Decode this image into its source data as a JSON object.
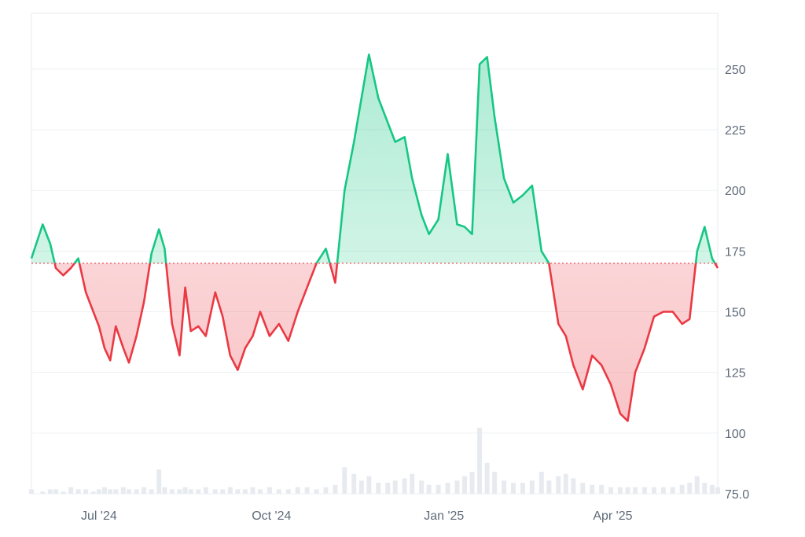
{
  "chart_data": {
    "type": "area",
    "baseline": 170,
    "y_ticks": [
      {
        "value": 250,
        "label": "250"
      },
      {
        "value": 225,
        "label": "225"
      },
      {
        "value": 200,
        "label": "200"
      },
      {
        "value": 175,
        "label": "175"
      },
      {
        "value": 150,
        "label": "150"
      },
      {
        "value": 125,
        "label": "125"
      },
      {
        "value": 100,
        "label": "100"
      },
      {
        "value": 75,
        "label": "75.0"
      }
    ],
    "x_ticks": [
      {
        "date": "2024-07-01",
        "label": "Jul '24"
      },
      {
        "date": "2024-10-01",
        "label": "Oct '24"
      },
      {
        "date": "2025-01-01",
        "label": "Jan '25"
      },
      {
        "date": "2025-04-01",
        "label": "Apr '25"
      }
    ],
    "ylim": [
      75,
      270
    ],
    "xlim": [
      "2024-05-26",
      "2025-05-27"
    ],
    "grid": true,
    "colors": {
      "up": "#16c784",
      "down": "#ea3943",
      "baseline": "#ea3943",
      "grid": "#eef0f3",
      "volume": "#e7ebf0"
    },
    "series": [
      {
        "x": [
          "2024-05-26",
          "2024-06-01",
          "2024-06-05",
          "2024-06-08",
          "2024-06-12",
          "2024-06-16",
          "2024-06-20",
          "2024-06-24",
          "2024-06-28",
          "2024-07-01",
          "2024-07-04",
          "2024-07-07",
          "2024-07-10",
          "2024-07-14",
          "2024-07-17",
          "2024-07-21",
          "2024-07-25",
          "2024-07-29",
          "2024-08-02",
          "2024-08-05",
          "2024-08-09",
          "2024-08-13",
          "2024-08-16",
          "2024-08-19",
          "2024-08-23",
          "2024-08-27",
          "2024-09-01",
          "2024-09-05",
          "2024-09-09",
          "2024-09-13",
          "2024-09-17",
          "2024-09-21",
          "2024-09-25",
          "2024-09-30",
          "2024-10-05",
          "2024-10-10",
          "2024-10-15",
          "2024-10-20",
          "2024-10-25",
          "2024-10-30",
          "2024-11-04",
          "2024-11-09",
          "2024-11-14",
          "2024-11-18",
          "2024-11-22",
          "2024-11-27",
          "2024-12-02",
          "2024-12-06",
          "2024-12-11",
          "2024-12-15",
          "2024-12-20",
          "2024-12-24",
          "2024-12-29",
          "2025-01-03",
          "2025-01-08",
          "2025-01-12",
          "2025-01-16",
          "2025-01-20",
          "2025-01-24",
          "2025-01-28",
          "2025-02-02",
          "2025-02-07",
          "2025-02-12",
          "2025-02-17",
          "2025-02-22",
          "2025-02-26",
          "2025-03-03",
          "2025-03-07",
          "2025-03-11",
          "2025-03-16",
          "2025-03-21",
          "2025-03-26",
          "2025-03-31",
          "2025-04-05",
          "2025-04-09",
          "2025-04-13",
          "2025-04-18",
          "2025-04-23",
          "2025-04-28",
          "2025-05-03",
          "2025-05-08",
          "2025-05-12",
          "2025-05-16",
          "2025-05-20",
          "2025-05-24",
          "2025-05-27"
        ],
        "values": [
          172,
          186,
          178,
          168,
          165,
          168,
          172,
          158,
          150,
          144,
          135,
          130,
          144,
          135,
          129,
          140,
          154,
          174,
          184,
          176,
          145,
          132,
          160,
          142,
          144,
          140,
          158,
          148,
          132,
          126,
          135,
          140,
          150,
          140,
          145,
          138,
          150,
          160,
          170,
          176,
          162,
          200,
          220,
          238,
          256,
          238,
          228,
          220,
          222,
          205,
          190,
          182,
          188,
          215,
          186,
          185,
          182,
          252,
          255,
          230,
          205,
          195,
          198,
          202,
          175,
          170,
          145,
          140,
          128,
          118,
          132,
          128,
          120,
          108,
          105,
          125,
          135,
          148,
          150,
          150,
          145,
          147,
          175,
          185,
          172,
          168
        ],
        "volumes": [
          2,
          1,
          2,
          2,
          1,
          3,
          2,
          2,
          1,
          2,
          3,
          2,
          2,
          3,
          2,
          2,
          3,
          2,
          11,
          3,
          2,
          2,
          3,
          2,
          2,
          3,
          2,
          2,
          3,
          2,
          2,
          3,
          2,
          3,
          2,
          2,
          3,
          3,
          2,
          3,
          4,
          12,
          9,
          6,
          8,
          5,
          5,
          6,
          7,
          9,
          6,
          4,
          4,
          5,
          6,
          8,
          10,
          30,
          14,
          10,
          6,
          5,
          5,
          6,
          10,
          6,
          8,
          9,
          7,
          5,
          4,
          4,
          3,
          3,
          3,
          3,
          3,
          3,
          3,
          3,
          4,
          5,
          8,
          5,
          4,
          3
        ]
      }
    ]
  }
}
